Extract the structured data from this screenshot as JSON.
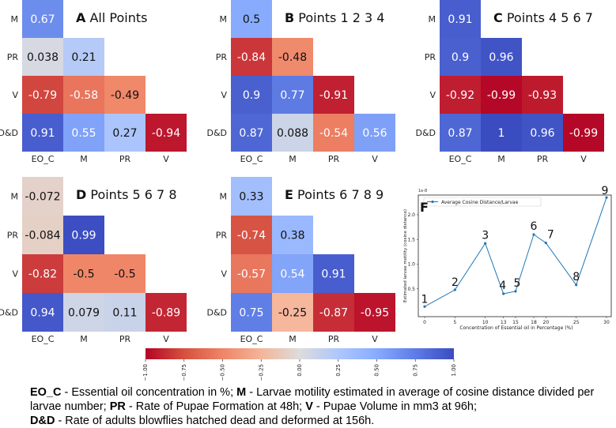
{
  "panels": [
    {
      "letter": "A",
      "subtitle": "All Points",
      "rows": [
        "M",
        "PR",
        "V",
        "D&D"
      ],
      "cols": [
        "EO_C",
        "M",
        "PR",
        "V"
      ],
      "values": [
        [
          0.67
        ],
        [
          0.038,
          0.21
        ],
        [
          -0.79,
          -0.58,
          -0.49
        ],
        [
          0.91,
          0.55,
          0.27,
          -0.94
        ]
      ]
    },
    {
      "letter": "B",
      "subtitle": "Points 1 2 3 4",
      "rows": [
        "M",
        "PR",
        "V",
        "D&D"
      ],
      "cols": [
        "EO_C",
        "M",
        "PR",
        "V"
      ],
      "values": [
        [
          0.5
        ],
        [
          -0.84,
          -0.48
        ],
        [
          0.9,
          0.77,
          -0.91
        ],
        [
          0.87,
          0.088,
          -0.54,
          0.56
        ]
      ]
    },
    {
      "letter": "C",
      "subtitle": "Points 4 5 6 7",
      "rows": [
        "M",
        "PR",
        "V",
        "D&D"
      ],
      "cols": [
        "EO_C",
        "M",
        "PR",
        "V"
      ],
      "values": [
        [
          0.91
        ],
        [
          0.9,
          0.96
        ],
        [
          -0.92,
          -0.99,
          -0.93
        ],
        [
          0.87,
          1,
          0.96,
          -0.99
        ]
      ]
    },
    {
      "letter": "D",
      "subtitle": "Points 5 6 7 8",
      "rows": [
        "M",
        "PR",
        "V",
        "D&D"
      ],
      "cols": [
        "EO_C",
        "M",
        "PR",
        "V"
      ],
      "values": [
        [
          -0.072
        ],
        [
          -0.084,
          0.99
        ],
        [
          -0.82,
          -0.5,
          -0.5
        ],
        [
          0.94,
          0.079,
          0.11,
          -0.89
        ]
      ]
    },
    {
      "letter": "E",
      "subtitle": "Points 6 7 8 9",
      "rows": [
        "M",
        "PR",
        "V",
        "D&D"
      ],
      "cols": [
        "EO_C",
        "M",
        "PR",
        "V"
      ],
      "values": [
        [
          0.33
        ],
        [
          -0.74,
          0.38
        ],
        [
          -0.57,
          0.54,
          0.91
        ],
        [
          0.75,
          -0.25,
          -0.87,
          -0.95
        ]
      ]
    }
  ],
  "colorbar": {
    "ticks": [
      "−1.00",
      "−0.75",
      "−0.50",
      "−0.25",
      "0.00",
      "0.25",
      "0.50",
      "0.75",
      "1.00"
    ],
    "min": -1,
    "max": 1
  },
  "chart_data": {
    "type": "line",
    "panel_letter": "F",
    "legend": "Average Cosine Distance/Larvae",
    "xlabel": "Concentration of Essential oil in Percentage (%)",
    "ylabel": "Estimated larvae motility (cosine distance)",
    "y_scale_label": "1e-8",
    "x_ticks": [
      "0",
      "5",
      "10",
      "13",
      "15",
      "18",
      "20",
      "25",
      "30"
    ],
    "y_ticks": [
      "0.5",
      "1.0",
      "1.5",
      "2.0"
    ],
    "ylim": [
      0,
      2.4
    ],
    "point_labels": [
      "1",
      "2",
      "3",
      "4",
      "5",
      "6",
      "7",
      "8",
      "9"
    ],
    "y": [
      0.14,
      0.48,
      1.42,
      0.4,
      0.45,
      1.6,
      1.43,
      0.58,
      2.35
    ]
  },
  "caption": {
    "eo_c_key": "EO_C",
    "eo_c_text": " - Essential oil concentration in %; ",
    "m_key": "M",
    "m_text": " - Larvae motility estimated in average of cosine distance divided per larvae number; ",
    "pr_key": "PR",
    "pr_text": " - Rate of Pupae Formation at 48h; ",
    "v_key": "V",
    "v_text": " - Pupae Volume in mm3 at 96h;",
    "dd_key": "D&D",
    "dd_text": " - Rate of adults blowflies hatched dead and deformed at 156h."
  }
}
